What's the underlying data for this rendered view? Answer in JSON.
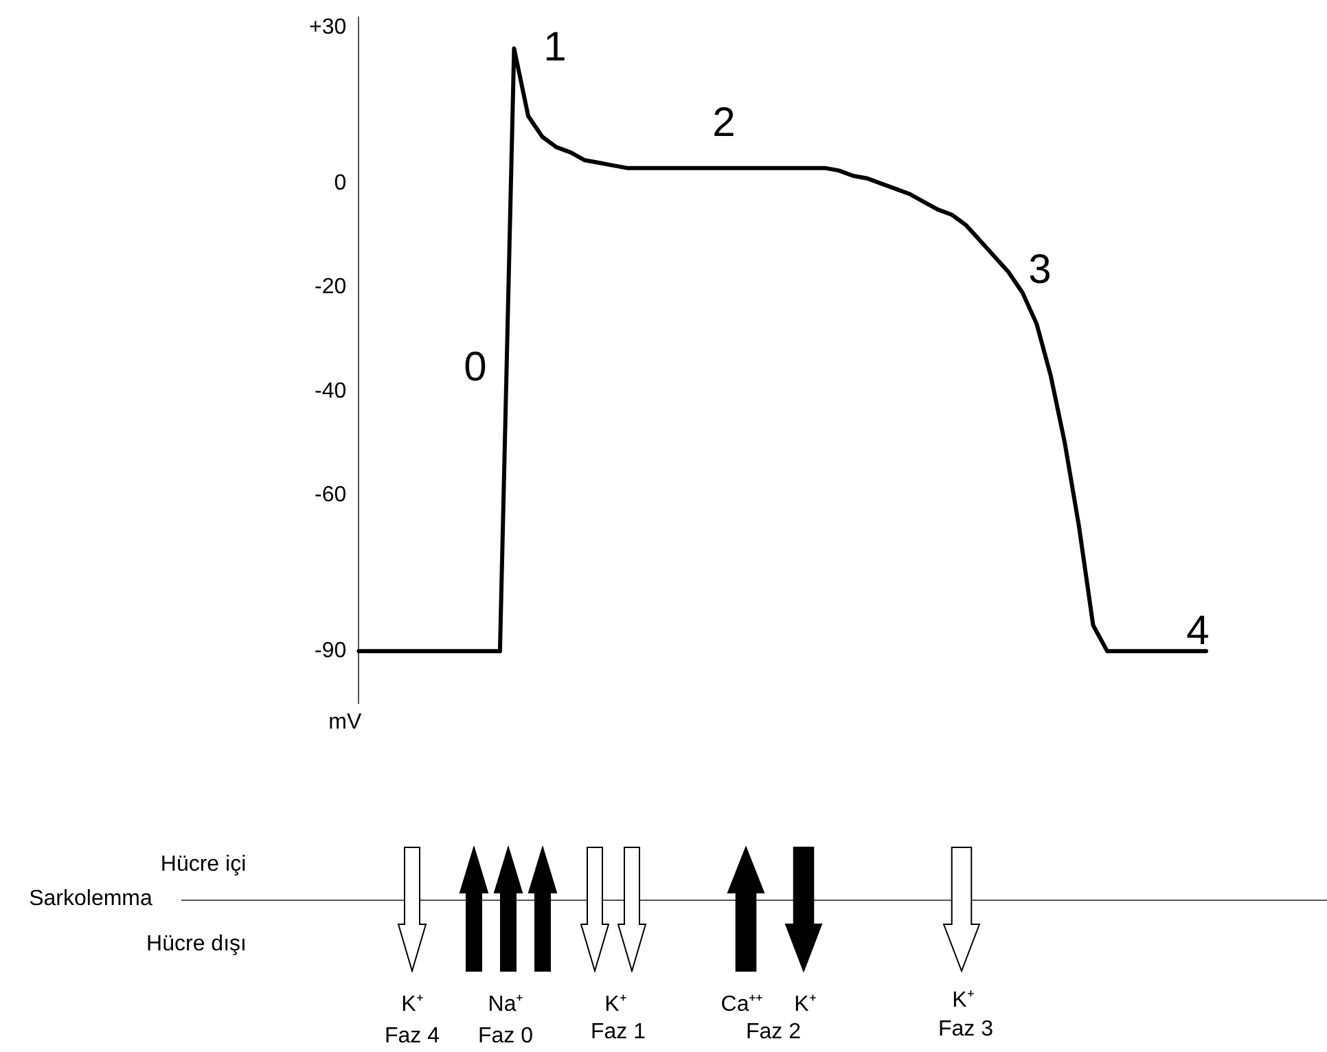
{
  "chart_data": {
    "type": "line",
    "ylabel": "mV",
    "categories": [
      null,
      null,
      null,
      null,
      null,
      null,
      null,
      null,
      null,
      null,
      null,
      null,
      null,
      null,
      null,
      null,
      null,
      null,
      null,
      null,
      null,
      null,
      null,
      null,
      null,
      null,
      null,
      null,
      null,
      null,
      null,
      null,
      null,
      null,
      null,
      null,
      null,
      null,
      null,
      null,
      null,
      null,
      null,
      null,
      null,
      null,
      null,
      null,
      null,
      null,
      null,
      null,
      null,
      null,
      null,
      null,
      null,
      null,
      null,
      null,
      null
    ],
    "series": [
      {
        "color": "#000000",
        "values": [
          -90,
          -90,
          -90,
          -90,
          -90,
          -90,
          -90,
          -90,
          -90,
          -90,
          -90,
          26,
          13,
          9,
          7,
          6,
          4.5,
          4,
          3.5,
          3,
          3,
          3,
          3,
          3,
          3,
          3,
          3,
          3,
          3,
          3,
          3,
          3,
          3,
          3,
          2.5,
          1.5,
          1,
          0,
          -1,
          -2,
          -3.5,
          -5,
          -6,
          -8,
          -11,
          -14,
          -17,
          -21,
          -27,
          -37,
          -50,
          -66,
          -85,
          -90,
          -90,
          -90,
          -90,
          -90,
          -90,
          -90,
          -90
        ]
      }
    ],
    "ylim": [
      -100,
      32
    ],
    "yticks": [
      {
        "value": 30,
        "label": "+30"
      },
      0,
      -20,
      -40,
      -60,
      -90
    ],
    "grid": false,
    "legend": false,
    "marker": "none",
    "line_style": "solid",
    "tick_labels": "y",
    "annotations": [
      "0",
      "1",
      "2",
      "3",
      "4",
      "Sarkolemma",
      "Hücre içi",
      "Hücre dışı",
      "K⁺",
      "Faz 4",
      "Na⁺",
      "Faz 0",
      "K⁺",
      "Faz 1",
      "Ca⁺⁺",
      "K⁺",
      "Faz 2",
      "K⁺",
      "Faz 3"
    ]
  }
}
